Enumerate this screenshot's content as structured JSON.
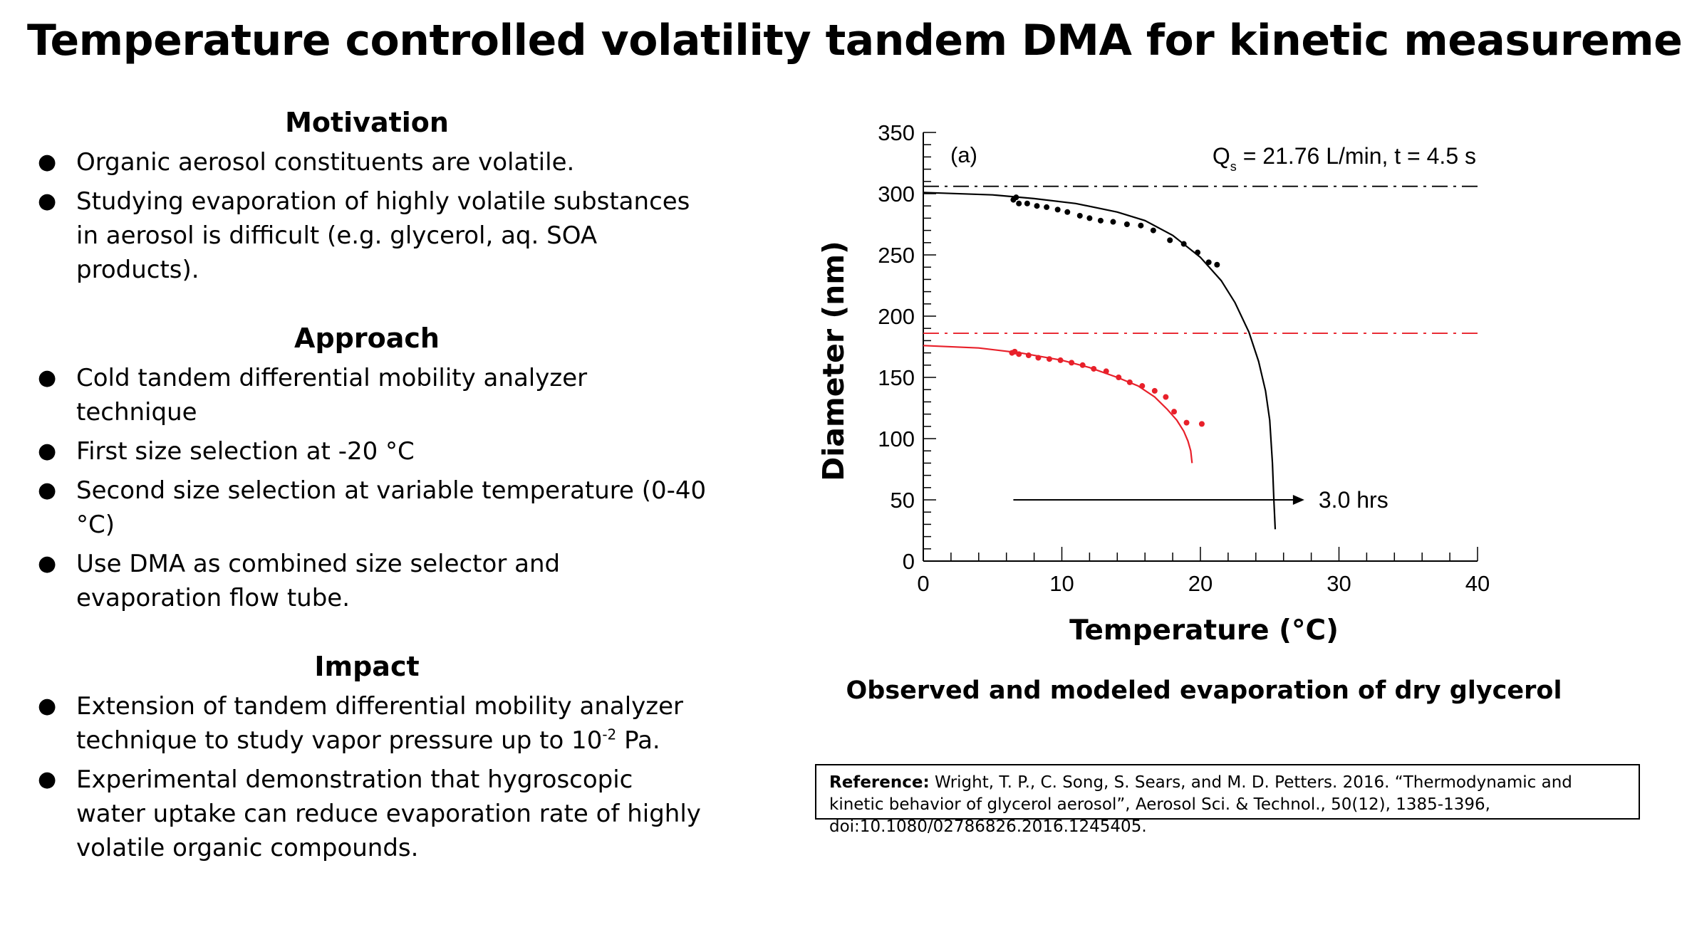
{
  "title": "Temperature controlled volatility tandem DMA for kinetic measurements",
  "motivation": {
    "heading": "Motivation",
    "bullets": [
      "Organic aerosol constituents are volatile.",
      "Studying evaporation of highly volatile substances in aerosol is difficult (e.g. glycerol, aq. SOA products)."
    ]
  },
  "approach": {
    "heading": "Approach",
    "bullets": [
      "Cold tandem differential mobility analyzer technique",
      "First size selection at -20 °C",
      "Second size selection at variable temperature (0-40 °C)",
      "Use DMA as combined size selector and evaporation flow tube."
    ]
  },
  "impact": {
    "heading": "Impact",
    "bullet1_pre": "Extension of tandem differential mobility analyzer technique to study vapor pressure up to 10",
    "bullet1_sup": "-2",
    "bullet1_post": " Pa.",
    "bullet2": "Experimental demonstration that hygroscopic water uptake can reduce evaporation rate of highly volatile organic compounds."
  },
  "bullet_char": "●",
  "caption": "Observed and modeled evaporation of dry glycerol",
  "reference": {
    "label": "Reference:",
    "text": "Wright, T. P., C. Song, S. Sears, and M. D. Petters. 2016. “Thermodynamic and kinetic behavior of glycerol aerosol”, Aerosol Sci. & Technol., 50(12), 1385-1396, doi:10.1080/02786826.2016.1245405."
  },
  "chart_data": {
    "type": "scatter",
    "panel_label": "(a)",
    "annotation_q": "Q",
    "annotation_q_sub": "s",
    "annotation_rest": " = 21.76 L/min, t = 4.5 s",
    "arrow_label": "3.0 hrs",
    "xlabel": "Temperature (°C)",
    "ylabel": "Diameter  (nm)",
    "xlim": [
      0,
      40
    ],
    "ylim": [
      0,
      350
    ],
    "xticks": [
      0,
      10,
      20,
      30,
      40
    ],
    "yticks": [
      0,
      50,
      100,
      150,
      200,
      250,
      300,
      350
    ],
    "colors": {
      "black": "#000000",
      "red": "#e8202a"
    },
    "reference_lines": [
      {
        "y": 306,
        "color": "#000000",
        "style": "dash-dot"
      },
      {
        "y": 186,
        "color": "#e8202a",
        "style": "dash-dot"
      }
    ],
    "arrow": {
      "x_start": 6.5,
      "x_end": 27.5,
      "y": 50
    },
    "series": [
      {
        "color": "#000000",
        "kind": "points",
        "x": [
          6.5,
          6.7,
          6.9,
          7.5,
          8.2,
          8.9,
          9.7,
          10.4,
          11.3,
          12.0,
          12.8,
          13.7,
          14.7,
          15.7,
          16.6,
          17.8,
          18.8,
          19.8,
          20.6,
          21.2
        ],
        "y": [
          295,
          297,
          292,
          292,
          290,
          289,
          287,
          285,
          282,
          280,
          278,
          277,
          275,
          274,
          270,
          262,
          259,
          252,
          244,
          242
        ]
      },
      {
        "color": "#000000",
        "kind": "curve",
        "x": [
          0,
          5,
          8,
          11,
          14,
          16,
          18,
          20,
          21.5,
          22.5,
          23.5,
          24.2,
          24.7,
          25.0,
          25.2,
          25.3,
          25.4
        ],
        "y": [
          301,
          299,
          296,
          292,
          285,
          278,
          266,
          248,
          229,
          211,
          187,
          163,
          139,
          115,
          80,
          50,
          26
        ]
      },
      {
        "color": "#e8202a",
        "kind": "points",
        "x": [
          6.4,
          6.6,
          6.9,
          7.6,
          8.3,
          9.1,
          9.9,
          10.7,
          11.5,
          12.3,
          13.2,
          14.1,
          14.9,
          15.8,
          16.7,
          17.5,
          18.1,
          19.0,
          20.1
        ],
        "y": [
          170,
          171,
          169,
          168,
          166,
          165,
          164,
          162,
          160,
          157,
          155,
          150,
          146,
          143,
          139,
          134,
          122,
          113,
          112
        ]
      },
      {
        "color": "#e8202a",
        "kind": "curve",
        "x": [
          0,
          4,
          7,
          10,
          12,
          14,
          15.5,
          16.7,
          17.6,
          18.3,
          18.8,
          19.1,
          19.3,
          19.4
        ],
        "y": [
          176,
          174,
          170,
          164,
          158,
          150,
          143,
          134,
          124,
          115,
          106,
          98,
          90,
          80
        ]
      }
    ]
  }
}
